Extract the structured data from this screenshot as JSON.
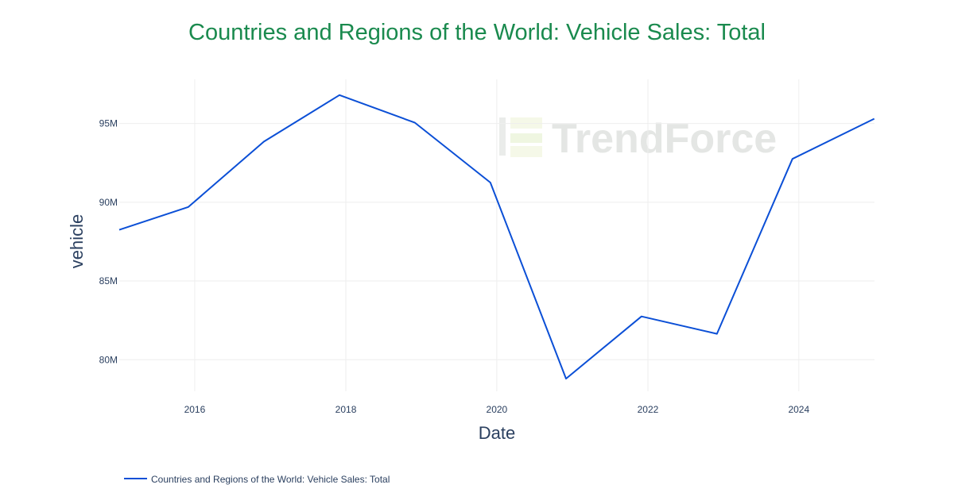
{
  "colors": {
    "title": "#1a8a4e",
    "series": "#0b4fd6",
    "grid": "#eeeeee",
    "text": "#2a3f5f",
    "watermark": "#e4e6e4"
  },
  "watermark": {
    "text": "TrendForce",
    "icon": "trendforce-logo-icon"
  },
  "chart_data": {
    "type": "line",
    "title": "Countries and Regions of the World: Vehicle Sales: Total",
    "xlabel": "Date",
    "ylabel": "vehicle",
    "x_ticks": [
      "2016",
      "2018",
      "2020",
      "2022",
      "2024"
    ],
    "y_ticks": [
      "80M",
      "85M",
      "90M",
      "95M"
    ],
    "y_tick_values": [
      80000000,
      85000000,
      90000000,
      95000000
    ],
    "ylim": [
      78000000,
      97800000
    ],
    "xlim": [
      "2015-01-01",
      "2025-01-01"
    ],
    "grid": true,
    "legend_position": "bottom-left",
    "series": [
      {
        "name": "Countries and Regions of the World: Vehicle Sales: Total",
        "x": [
          "2015-01-01",
          "2015-12-01",
          "2016-12-01",
          "2017-12-01",
          "2018-12-01",
          "2019-12-01",
          "2020-12-01",
          "2021-12-01",
          "2022-12-01",
          "2023-12-01",
          "2024-12-31"
        ],
        "values": [
          88250000,
          89700000,
          93850000,
          96800000,
          95050000,
          91250000,
          78800000,
          82750000,
          81650000,
          92750000,
          95300000
        ]
      }
    ]
  }
}
